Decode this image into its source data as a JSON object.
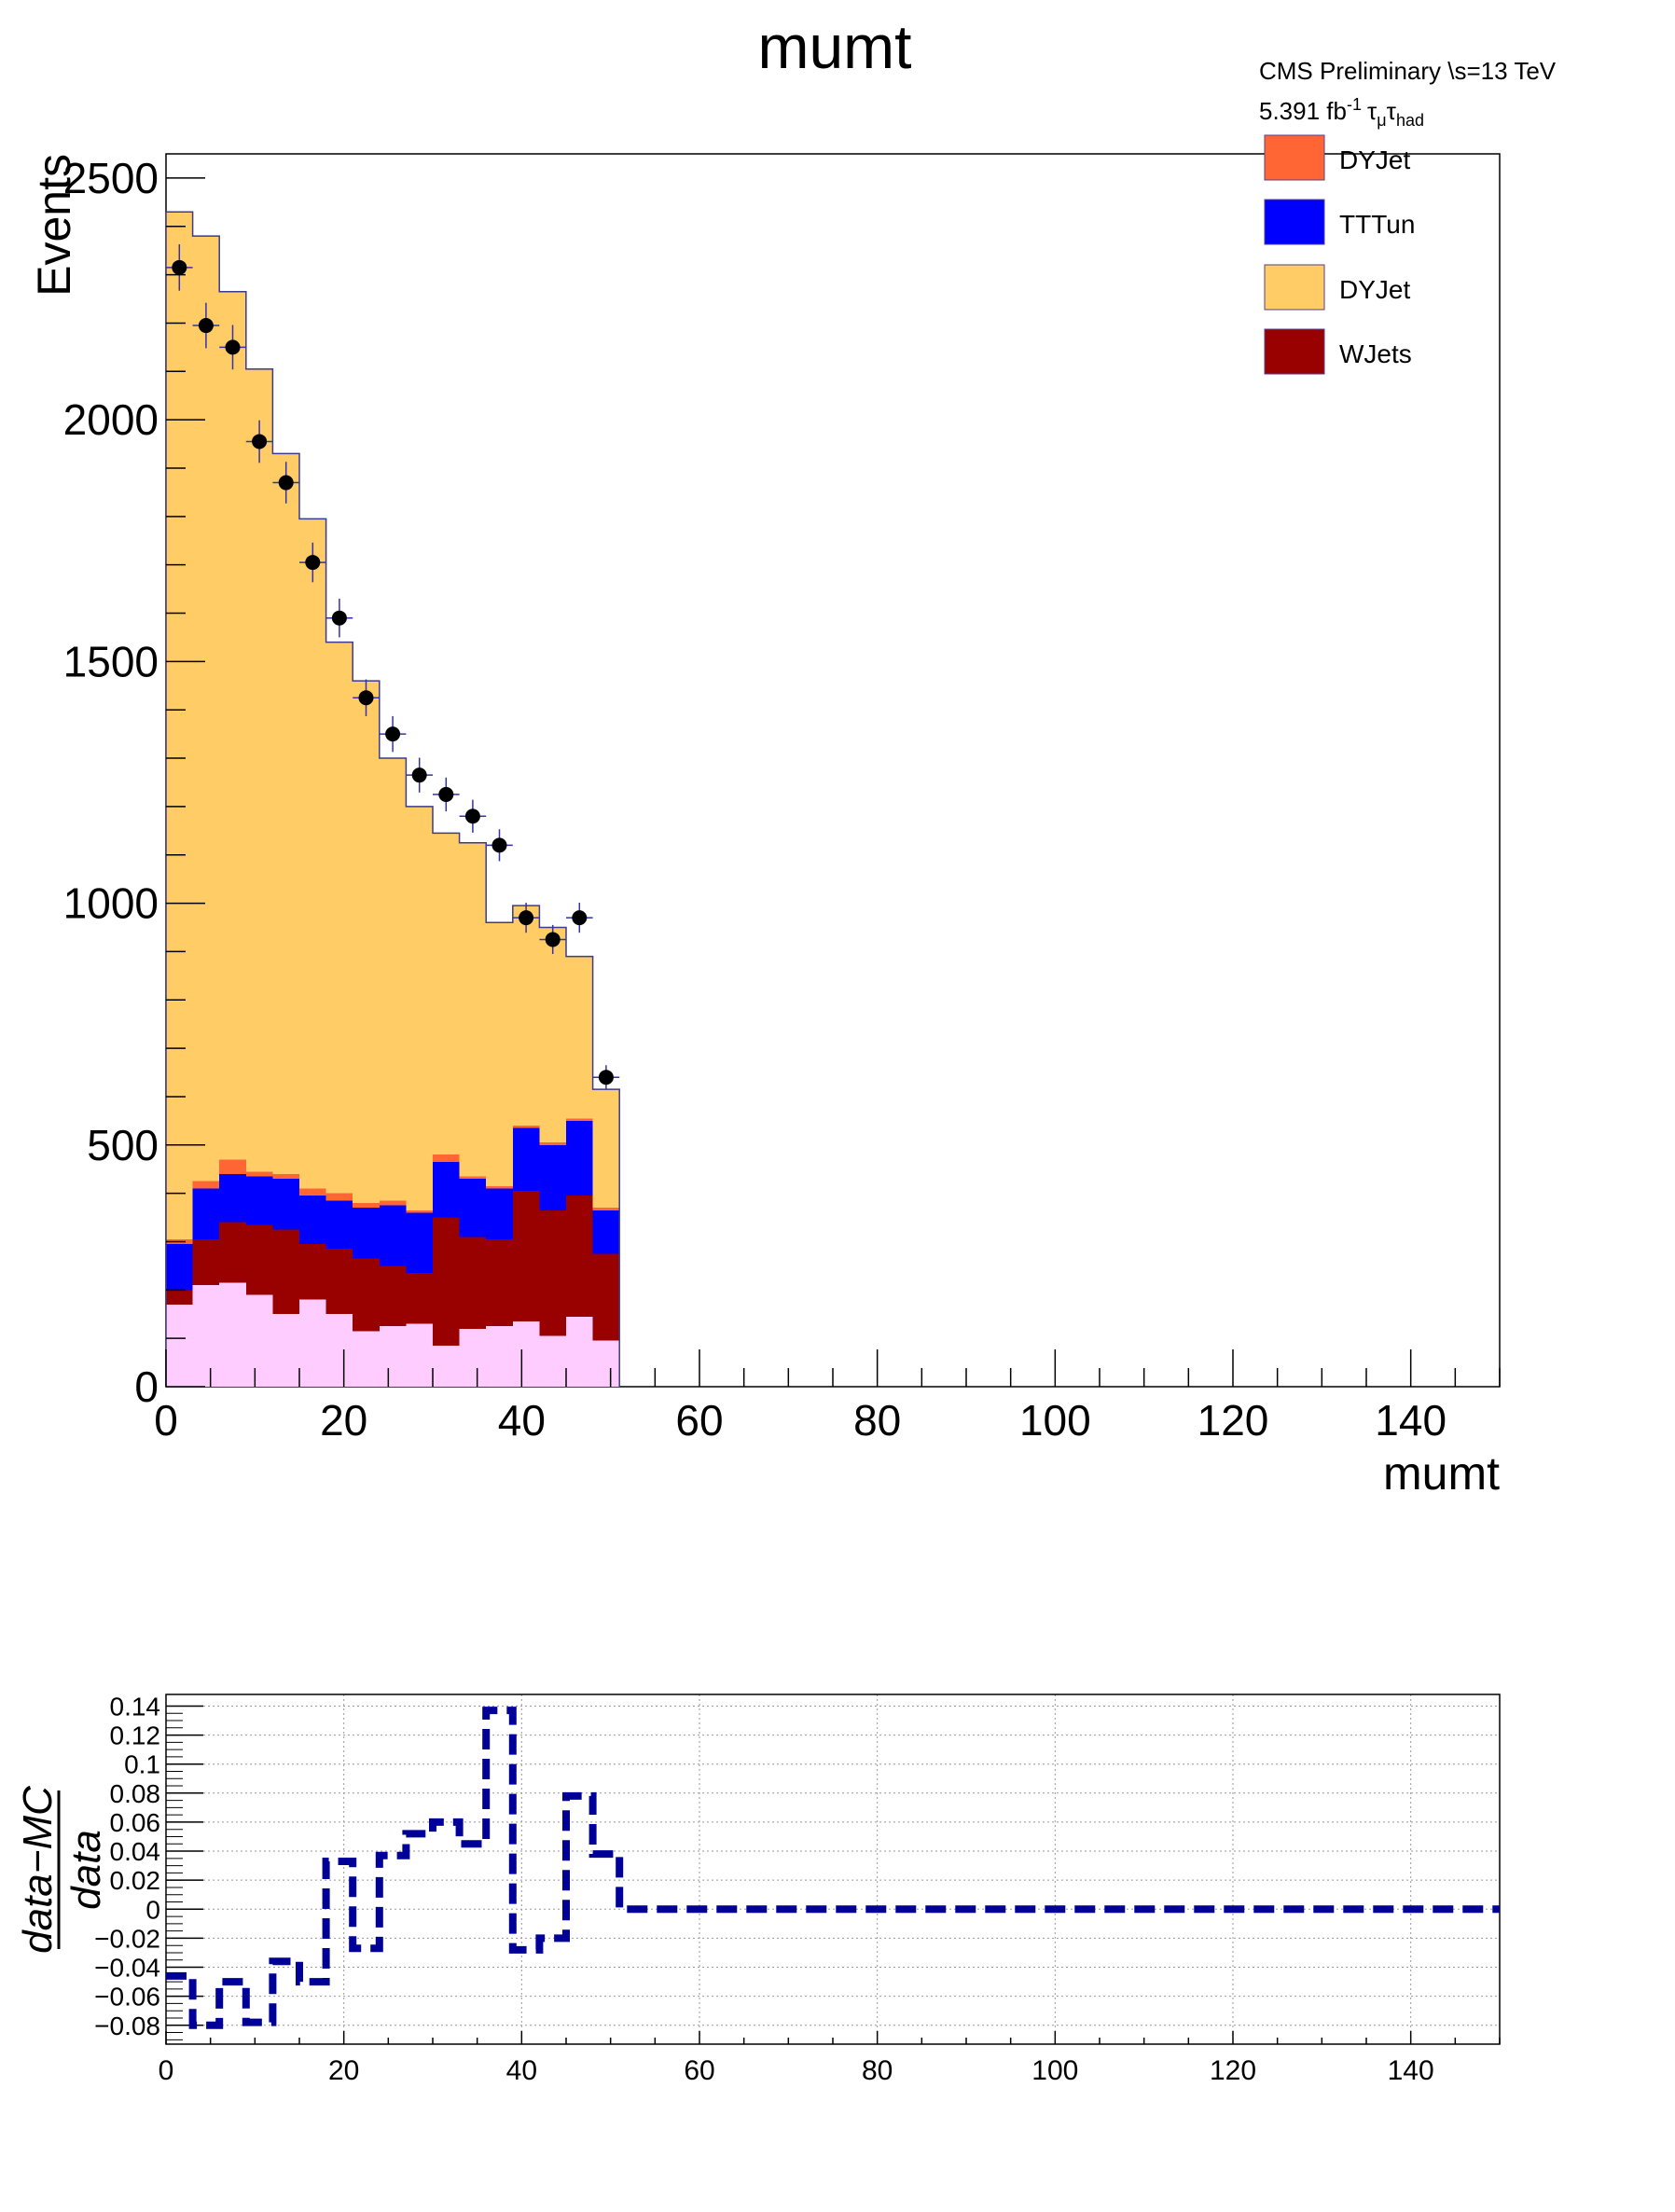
{
  "chart_data": [
    {
      "type": "bar",
      "stacked": true,
      "title": "mumt",
      "xlabel": "mumt",
      "ylabel": "Events",
      "xlim": [
        0,
        150
      ],
      "ylim": [
        0,
        2550
      ],
      "x_ticks": [
        "0",
        "20",
        "40",
        "60",
        "80",
        "100",
        "120",
        "140"
      ],
      "y_ticks": [
        "0",
        "500",
        "1000",
        "1500",
        "2000",
        "2500"
      ],
      "bin_width": 3,
      "bin_low_edges": [
        0,
        3,
        6,
        9,
        12,
        15,
        18,
        21,
        24,
        27,
        30,
        33,
        36,
        39,
        42,
        45,
        48
      ],
      "series": [
        {
          "name": "",
          "color": "#ffccff",
          "values": [
            170,
            210,
            215,
            190,
            150,
            180,
            150,
            115,
            125,
            130,
            85,
            120,
            125,
            135,
            105,
            145,
            95
          ]
        },
        {
          "name": "WJets",
          "color": "#990000",
          "values": [
            30,
            95,
            125,
            145,
            175,
            115,
            135,
            150,
            125,
            105,
            265,
            190,
            180,
            270,
            260,
            250,
            180
          ]
        },
        {
          "name": "TTTun",
          "color": "#0000ff",
          "values": [
            95,
            105,
            100,
            100,
            105,
            100,
            100,
            105,
            125,
            125,
            115,
            120,
            105,
            130,
            135,
            155,
            90
          ]
        },
        {
          "name": "DYJet",
          "color": "#ff6633",
          "values": [
            10,
            15,
            30,
            10,
            10,
            15,
            15,
            10,
            10,
            5,
            15,
            5,
            5,
            5,
            5,
            5,
            5
          ]
        },
        {
          "name": "DYJet",
          "color": "#ffcc66",
          "values": [
            2125,
            1955,
            1795,
            1660,
            1490,
            1385,
            1140,
            1080,
            915,
            835,
            665,
            690,
            545,
            455,
            445,
            335,
            245
          ]
        }
      ],
      "data_points": {
        "x": [
          1.5,
          4.5,
          7.5,
          10.5,
          13.5,
          16.5,
          19.5,
          22.5,
          25.5,
          28.5,
          31.5,
          34.5,
          37.5,
          40.5,
          43.5,
          46.5,
          49.5
        ],
        "y": [
          2315,
          2195,
          2150,
          1955,
          1870,
          1705,
          1590,
          1425,
          1350,
          1265,
          1225,
          1180,
          1120,
          970,
          925,
          970,
          640
        ],
        "yerr": [
          48,
          47,
          46,
          44,
          43,
          41,
          40,
          38,
          37,
          36,
          35,
          34,
          33,
          31,
          30,
          31,
          25
        ]
      },
      "legend_entries": [
        "DYJet",
        "TTTun",
        "DYJet",
        "WJets"
      ],
      "legend_placement": "top-right",
      "annotations": {
        "line1": "CMS Preliminary  \\s=13 TeV",
        "lumi_value": "5.391 fb",
        "lumi_sup": "-1",
        "tau1": "τ",
        "tau1_sub": "μ",
        "tau2": "τ",
        "tau2_sub": "had"
      }
    },
    {
      "type": "line",
      "style": "step, dashed",
      "line_color": "#000099",
      "xlabel": "",
      "ylabel_numerator": "data−MC",
      "ylabel_denominator": "data",
      "xlim": [
        0,
        150
      ],
      "ylim": [
        -0.093,
        0.148
      ],
      "x_ticks": [
        "0",
        "20",
        "40",
        "60",
        "80",
        "100",
        "120",
        "140"
      ],
      "y_ticks": [
        "−0.08",
        "−0.06",
        "−0.04",
        "−0.02",
        "0",
        "0.02",
        "0.04",
        "0.06",
        "0.08",
        "0.1",
        "0.12",
        "0.14"
      ],
      "grid": true,
      "bin_edges": [
        0,
        3,
        6,
        9,
        12,
        15,
        18,
        21,
        24,
        27,
        30,
        33,
        36,
        39,
        42,
        45,
        48,
        51,
        150
      ],
      "values": [
        -0.046,
        -0.08,
        -0.05,
        -0.078,
        -0.036,
        -0.05,
        0.033,
        -0.027,
        0.037,
        0.052,
        0.06,
        0.045,
        0.137,
        -0.028,
        -0.02,
        0.078,
        0.038,
        0.0
      ]
    }
  ]
}
